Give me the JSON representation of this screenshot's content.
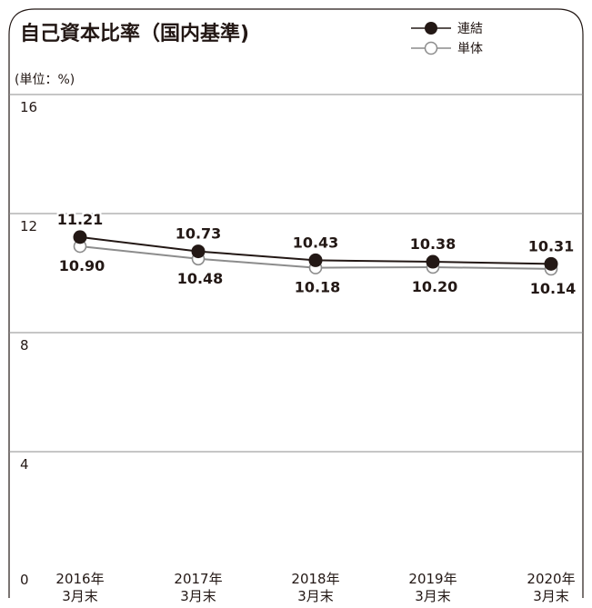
{
  "chart_data": {
    "type": "line",
    "title": "自己資本比率（国内基準)",
    "unit": "(単位：%)",
    "categories": [
      [
        "2016年",
        "3月末"
      ],
      [
        "2017年",
        "3月末"
      ],
      [
        "2018年",
        "3月末"
      ],
      [
        "2019年",
        "3月末"
      ],
      [
        "2020年",
        "3月末"
      ]
    ],
    "y_ticks": [
      0,
      4,
      8,
      12,
      16
    ],
    "ylim": [
      0,
      20
    ],
    "grid": true,
    "legend_position": "top-right",
    "series": [
      {
        "name": "連結",
        "values": [
          11.21,
          10.73,
          10.43,
          10.38,
          10.31
        ],
        "value_labels": [
          "11.21",
          "10.73",
          "10.43",
          "10.38",
          "10.31"
        ],
        "marker": "filled",
        "color": "#231815"
      },
      {
        "name": "単体",
        "values": [
          10.9,
          10.48,
          10.18,
          10.2,
          10.14
        ],
        "value_labels": [
          "10.90",
          "10.48",
          "10.18",
          "10.20",
          "10.14"
        ],
        "marker": "hollow",
        "color": "#8c8c8c"
      }
    ]
  }
}
